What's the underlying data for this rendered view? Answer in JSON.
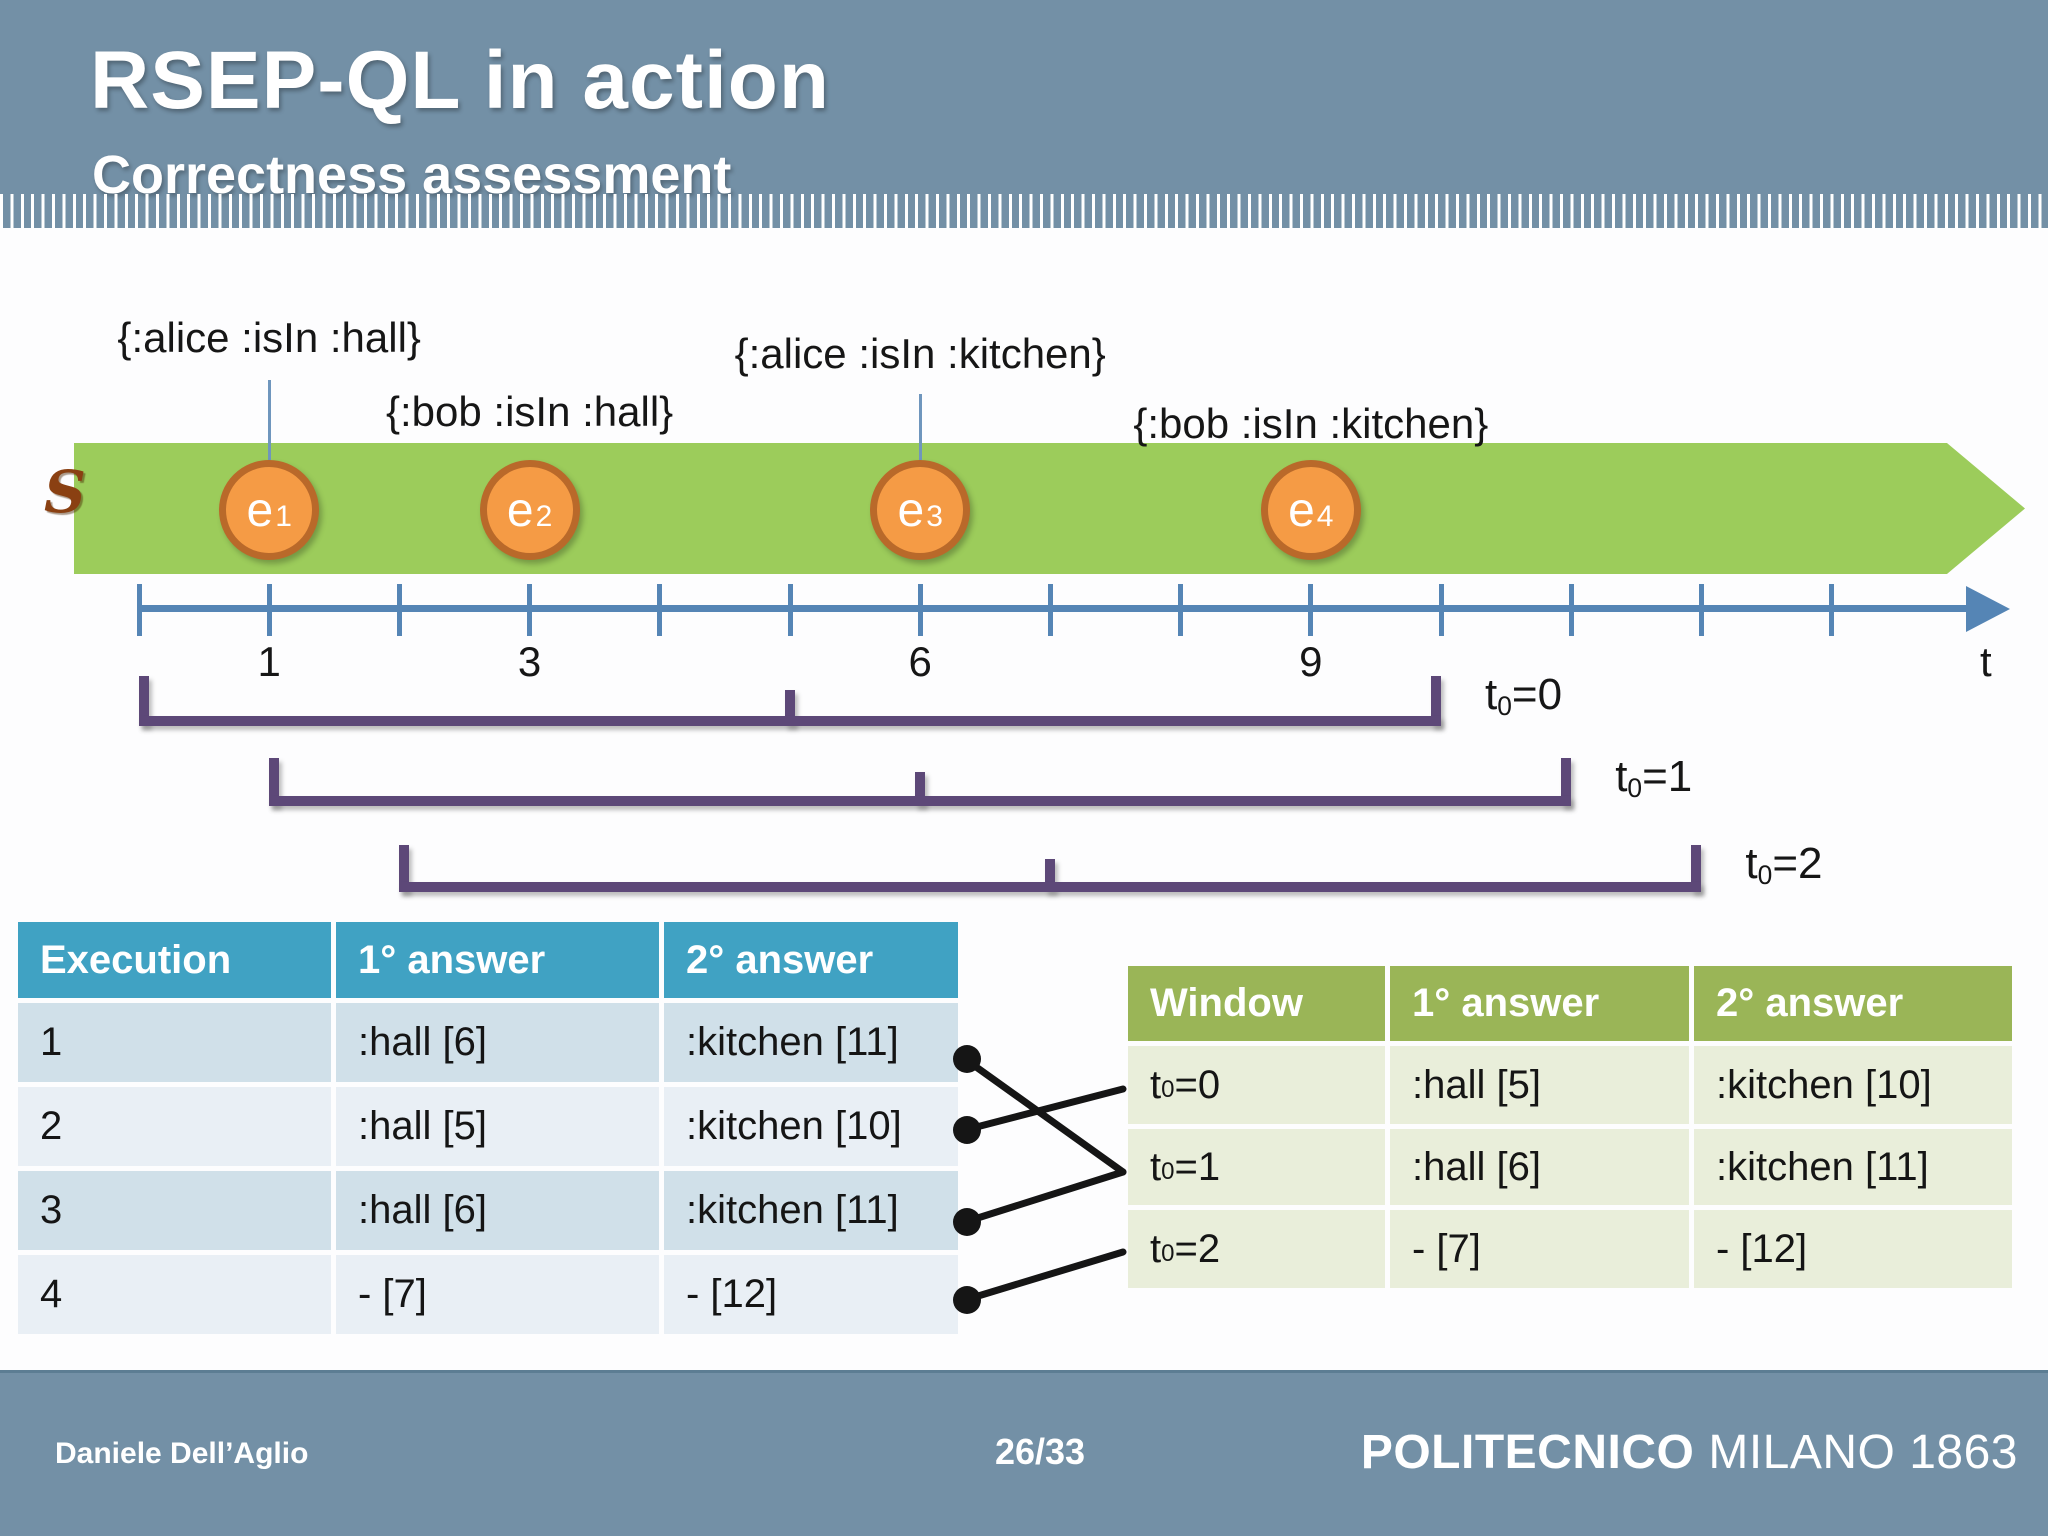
{
  "header": {
    "title": "RSEP-QL in action",
    "subtitle": "Correctness assessment"
  },
  "timeline": {
    "stream_label": "S",
    "axis": {
      "label": "t",
      "tick_count": 14,
      "labeled_ticks": [
        {
          "text": "1",
          "t": 1
        },
        {
          "text": "3",
          "t": 3
        },
        {
          "text": "6",
          "t": 6
        },
        {
          "text": "9",
          "t": 9
        }
      ]
    },
    "events": [
      {
        "name": "e",
        "index": "1",
        "t": 1,
        "label": "{:alice :isIn :hall}"
      },
      {
        "name": "e",
        "index": "2",
        "t": 3,
        "label": "{:bob :isIn :hall}"
      },
      {
        "name": "e",
        "index": "3",
        "t": 6,
        "label": "{:alice :isIn :kitchen}"
      },
      {
        "name": "e",
        "index": "4",
        "t": 9,
        "label": "{:bob :isIn :kitchen}"
      }
    ],
    "windows": [
      {
        "pre": "t",
        "sub": "0",
        "post": "=0",
        "from": 0,
        "mid": 5,
        "to": 10
      },
      {
        "pre": "t",
        "sub": "0",
        "post": "=1",
        "from": 1,
        "mid": 6,
        "to": 11
      },
      {
        "pre": "t",
        "sub": "0",
        "post": "=2",
        "from": 2,
        "mid": 7,
        "to": 12
      }
    ]
  },
  "exec_table": {
    "headers": [
      "Execution",
      "1° answer",
      "2° answer"
    ],
    "rows": [
      [
        "1",
        ":hall [6]",
        ":kitchen [11]"
      ],
      [
        "2",
        ":hall [5]",
        ":kitchen [10]"
      ],
      [
        "3",
        ":hall [6]",
        ":kitchen [11]"
      ],
      [
        "4",
        "- [7]",
        "- [12]"
      ]
    ]
  },
  "window_table": {
    "headers": [
      "Window",
      "1° answer",
      "2° answer"
    ],
    "rows": [
      {
        "window": {
          "pre": "t",
          "sub": "0",
          "post": "=0"
        },
        "first": ":hall [5]",
        "second": ":kitchen [10]"
      },
      {
        "window": {
          "pre": "t",
          "sub": "0",
          "post": "=1"
        },
        "first": ":hall [6]",
        "second": ":kitchen [11]"
      },
      {
        "window": {
          "pre": "t",
          "sub": "0",
          "post": "=2"
        },
        "first": "- [7]",
        "second": "- [12]"
      }
    ]
  },
  "mapping": [
    {
      "execution": "1",
      "window": "t0=1"
    },
    {
      "execution": "2",
      "window": "t0=0"
    },
    {
      "execution": "3",
      "window": "t0=1"
    },
    {
      "execution": "4",
      "window": "t0=2"
    }
  ],
  "footer": {
    "author": "Daniele Dell’Aglio",
    "page": "26/33",
    "logo_primary": "POLITECNICO",
    "logo_secondary": "MILANO 1863"
  },
  "colors": {
    "header_footer_bg": "#7390a6",
    "stream_band": "#9ccc5b",
    "event_fill": "#f59b45",
    "event_border": "#b9692a",
    "axis": "#5585b5",
    "window_bracket": "#5d4878",
    "exec_table_header_bg": "#40a2c3",
    "exec_table_row_dark": "#d0e0e9",
    "exec_table_row_light": "#e9eff5",
    "window_table_header_bg": "#9ab557",
    "window_table_row": "#e9eeda",
    "connector": "#151515",
    "stream_label_color": "#8a4012"
  }
}
